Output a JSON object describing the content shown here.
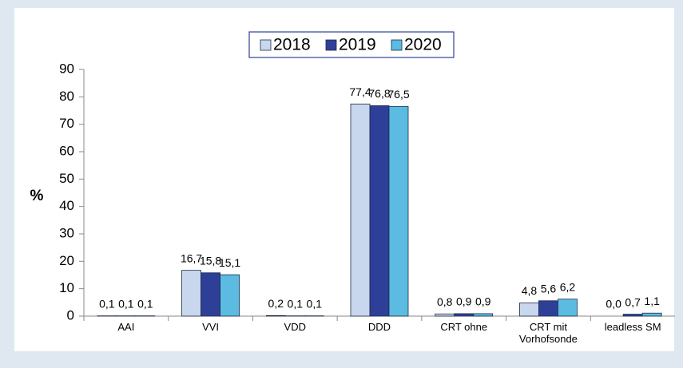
{
  "chart_data": {
    "type": "bar",
    "y_label": "%",
    "categories": [
      "AAI",
      "VVI",
      "VDD",
      "DDD",
      "CRT ohne",
      "CRT mit\nVorhofsonde",
      "leadless SM"
    ],
    "series": [
      {
        "name": "2018",
        "color": "#c9d7ee",
        "values": [
          0.1,
          16.7,
          0.2,
          77.4,
          0.8,
          4.8,
          0.0
        ],
        "value_labels": [
          "0,1",
          "16,7",
          "0,2",
          "77,4",
          "0,8",
          "4,8",
          "0,0"
        ]
      },
      {
        "name": "2019",
        "color": "#2e3f98",
        "values": [
          0.1,
          15.8,
          0.1,
          76.8,
          0.9,
          5.6,
          0.7
        ],
        "value_labels": [
          "0,1",
          "15,8",
          "0,1",
          "76,8",
          "0,9",
          "5,6",
          "0,7"
        ]
      },
      {
        "name": "2020",
        "color": "#5bbbe0",
        "values": [
          0.1,
          15.1,
          0.1,
          76.5,
          0.9,
          6.2,
          1.1
        ],
        "value_labels": [
          "0,1",
          "15,1",
          "0,1",
          "76,5",
          "0,9",
          "6,2",
          "1,1"
        ]
      }
    ],
    "ylim": [
      0,
      90
    ],
    "yticks": [
      0,
      10,
      20,
      30,
      40,
      50,
      60,
      70,
      80,
      90
    ],
    "grid": false,
    "legend": "top"
  }
}
